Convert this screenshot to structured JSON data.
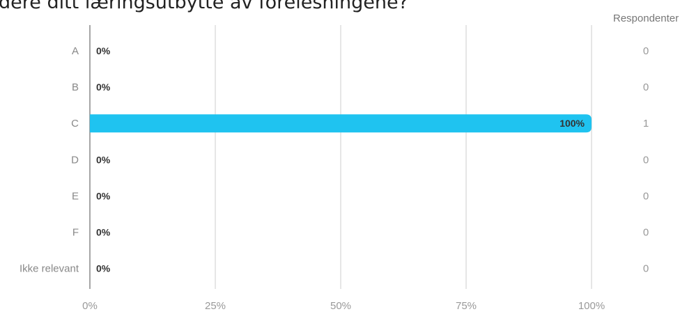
{
  "header": {
    "title": "dere ditt læringsutbytte av forelesningene?",
    "respondents_label": "Respondenter"
  },
  "colors": {
    "bar": "#1fc3f0",
    "grid": "#cccccc",
    "axis": "#888888"
  },
  "chart_data": {
    "type": "bar",
    "orientation": "horizontal",
    "categories": [
      "A",
      "B",
      "C",
      "D",
      "E",
      "F",
      "Ikke relevant"
    ],
    "values": [
      0,
      0,
      100,
      0,
      0,
      0,
      0
    ],
    "value_labels": [
      "0%",
      "0%",
      "100%",
      "0%",
      "0%",
      "0%",
      "0%"
    ],
    "respondents": [
      "0",
      "0",
      "1",
      "0",
      "0",
      "0",
      "0"
    ],
    "xlim": [
      0,
      100
    ],
    "x_ticks": [
      0,
      25,
      50,
      75,
      100
    ],
    "x_tick_labels": [
      "0%",
      "25%",
      "50%",
      "75%",
      "100%"
    ],
    "grid": true
  }
}
